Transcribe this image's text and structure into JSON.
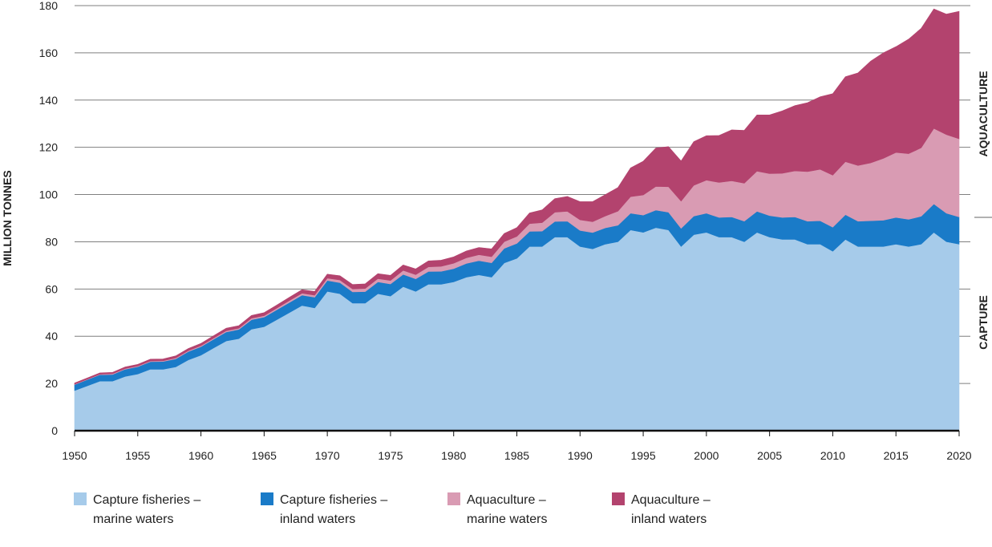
{
  "chart_data": {
    "type": "area",
    "stacked": true,
    "ylabel": "MILLION TONNES",
    "ylim": [
      0,
      180
    ],
    "yticks": [
      0,
      20,
      40,
      60,
      80,
      100,
      120,
      140,
      160,
      180
    ],
    "xlim": [
      1950,
      2020
    ],
    "xticks": [
      1950,
      1955,
      1960,
      1965,
      1970,
      1975,
      1980,
      1985,
      1990,
      1995,
      2000,
      2005,
      2010,
      2015,
      2020
    ],
    "grid": true,
    "legend_position": "bottom",
    "side_labels": {
      "top": "AQUACULTURE",
      "bottom": "CAPTURE"
    },
    "x": [
      1950,
      1951,
      1952,
      1953,
      1954,
      1955,
      1956,
      1957,
      1958,
      1959,
      1960,
      1961,
      1962,
      1963,
      1964,
      1965,
      1966,
      1967,
      1968,
      1969,
      1970,
      1971,
      1972,
      1973,
      1974,
      1975,
      1976,
      1977,
      1978,
      1979,
      1980,
      1981,
      1982,
      1983,
      1984,
      1985,
      1986,
      1987,
      1988,
      1989,
      1990,
      1991,
      1992,
      1993,
      1994,
      1995,
      1996,
      1997,
      1998,
      1999,
      2000,
      2001,
      2002,
      2003,
      2004,
      2005,
      2006,
      2007,
      2008,
      2009,
      2010,
      2011,
      2012,
      2013,
      2014,
      2015,
      2016,
      2017,
      2018,
      2019,
      2020
    ],
    "series": [
      {
        "name_lines": [
          "Capture fisheries –",
          "marine waters"
        ],
        "color": "#a6cbea",
        "values": [
          17,
          19,
          21,
          21,
          23,
          24,
          26,
          26,
          27,
          30,
          32,
          35,
          38,
          39,
          43,
          44,
          47,
          50,
          53,
          52,
          59,
          58,
          54,
          54,
          58,
          57,
          61,
          59,
          62,
          62,
          63,
          65,
          66,
          65,
          71,
          73,
          78,
          78,
          82,
          82,
          78,
          77,
          79,
          80,
          85,
          84,
          86,
          85,
          78,
          83,
          84,
          82,
          82,
          80,
          84,
          82,
          81,
          81,
          79,
          79,
          76,
          81,
          78,
          78,
          78,
          79,
          78,
          79,
          84,
          80,
          79
        ]
      },
      {
        "name_lines": [
          "Capture fisheries –",
          "inland waters"
        ],
        "color": "#1a7bc8",
        "values": [
          2.5,
          2.6,
          2.7,
          2.8,
          3,
          3.1,
          3.2,
          3.3,
          3.4,
          3.5,
          3.6,
          3.7,
          3.8,
          3.9,
          4,
          4.1,
          4.2,
          4.3,
          4.4,
          4.5,
          4.6,
          4.7,
          4.8,
          4.9,
          5,
          5.1,
          5.2,
          5.3,
          5.4,
          5.5,
          5.6,
          5.8,
          6,
          6.1,
          6.2,
          6.3,
          6.4,
          6.5,
          6.6,
          6.7,
          6.8,
          6.9,
          6.9,
          7,
          7.1,
          7.3,
          7.4,
          7.5,
          7.7,
          7.9,
          8.1,
          8.3,
          8.5,
          8.7,
          8.9,
          9.1,
          9.3,
          9.5,
          9.7,
          9.9,
          10.2,
          10.5,
          10.7,
          10.9,
          11.1,
          11.3,
          11.5,
          11.8,
          12,
          12.1,
          11.5
        ]
      },
      {
        "name_lines": [
          "Aquaculture –",
          "marine waters"
        ],
        "color": "#d99bb3",
        "values": [
          0.2,
          0.2,
          0.2,
          0.3,
          0.3,
          0.3,
          0.3,
          0.3,
          0.4,
          0.4,
          0.4,
          0.5,
          0.5,
          0.5,
          0.6,
          0.6,
          0.7,
          0.8,
          0.8,
          0.9,
          1,
          1.1,
          1.2,
          1.3,
          1.4,
          1.5,
          1.7,
          1.8,
          2,
          2.1,
          2.3,
          2.4,
          2.5,
          2.6,
          2.8,
          3,
          3.3,
          3.6,
          3.9,
          4.2,
          4.5,
          4.6,
          5,
          6,
          7,
          8.5,
          10,
          10.8,
          11.5,
          13,
          14,
          14.8,
          15.3,
          16.1,
          17,
          17.8,
          18.7,
          19.5,
          21,
          21.8,
          22,
          22.4,
          23.6,
          24.5,
          26.2,
          27.5,
          27.8,
          29,
          32,
          33.3,
          33.1
        ]
      },
      {
        "name_lines": [
          "Aquaculture –",
          "inland waters"
        ],
        "color": "#b3436e",
        "values": [
          0.5,
          0.5,
          0.6,
          0.6,
          0.7,
          0.7,
          0.8,
          0.8,
          0.9,
          0.9,
          1,
          1,
          1.1,
          1.1,
          1.2,
          1.3,
          1.3,
          1.4,
          1.5,
          1.6,
          1.7,
          1.8,
          1.9,
          2,
          2.1,
          2.2,
          2.3,
          2.4,
          2.5,
          2.6,
          2.7,
          2.9,
          3.1,
          3.3,
          3.5,
          3.7,
          4.5,
          5.4,
          5.8,
          6.3,
          7.7,
          8.5,
          9.1,
          10,
          12.2,
          14.3,
          16.3,
          17,
          17,
          18.5,
          18.8,
          19.9,
          21.6,
          22.4,
          23.8,
          24.8,
          26.4,
          27.7,
          29.2,
          30.7,
          34.5,
          36,
          39.2,
          43.1,
          44.7,
          44.8,
          48.5,
          50.6,
          50.6,
          51,
          54
        ]
      }
    ]
  }
}
